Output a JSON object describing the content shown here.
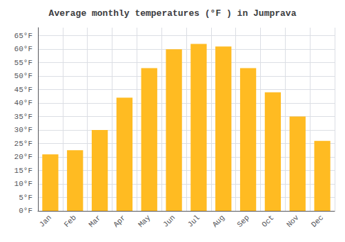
{
  "chart_data": {
    "type": "bar",
    "title": "Average monthly temperatures (°F ) in Jumprava",
    "categories": [
      "Jan",
      "Feb",
      "Mar",
      "Apr",
      "May",
      "Jun",
      "Jul",
      "Aug",
      "Sep",
      "Oct",
      "Nov",
      "Dec"
    ],
    "values": [
      21,
      22.5,
      30,
      42,
      53,
      60,
      62,
      61,
      53,
      44,
      35,
      26
    ],
    "color": "#FFBB22",
    "ylim": [
      0,
      68
    ],
    "yticks": [
      {
        "value": 0,
        "label": "0°F"
      },
      {
        "value": 5,
        "label": "5°F"
      },
      {
        "value": 10,
        "label": "10°F"
      },
      {
        "value": 15,
        "label": "15°F"
      },
      {
        "value": 20,
        "label": "20°F"
      },
      {
        "value": 25,
        "label": "25°F"
      },
      {
        "value": 30,
        "label": "30°F"
      },
      {
        "value": 35,
        "label": "35°F"
      },
      {
        "value": 40,
        "label": "40°F"
      },
      {
        "value": 45,
        "label": "45°F"
      },
      {
        "value": 50,
        "label": "50°F"
      },
      {
        "value": 55,
        "label": "55°F"
      },
      {
        "value": 60,
        "label": "60°F"
      },
      {
        "value": 65,
        "label": "65°F"
      }
    ],
    "grid": true
  }
}
